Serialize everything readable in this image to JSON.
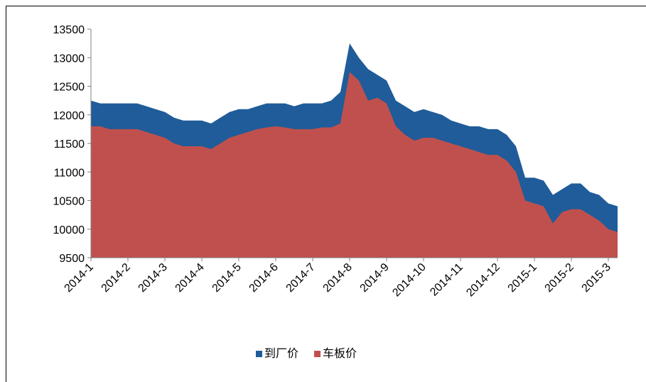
{
  "chart_data": {
    "type": "area",
    "categories": [
      "2014-1",
      null,
      null,
      null,
      "2014-2",
      null,
      null,
      null,
      "2014-3",
      null,
      null,
      null,
      "2014-4",
      null,
      null,
      null,
      "2014-5",
      null,
      null,
      null,
      "2014-6",
      null,
      null,
      null,
      "2014-7",
      null,
      null,
      null,
      "2014-8",
      null,
      null,
      null,
      "2014-9",
      null,
      null,
      null,
      "2014-10",
      null,
      null,
      null,
      "2014-11",
      null,
      null,
      null,
      "2014-12",
      null,
      null,
      null,
      "2015-1",
      null,
      null,
      null,
      "2015-2",
      null,
      null,
      null,
      "2015-3",
      null
    ],
    "series": [
      {
        "name": "到厂价",
        "color": "#1f5c99",
        "values": [
          12250,
          12200,
          12200,
          12200,
          12200,
          12200,
          12150,
          12100,
          12050,
          11950,
          11900,
          11900,
          11900,
          11850,
          11950,
          12050,
          12100,
          12100,
          12150,
          12200,
          12200,
          12200,
          12150,
          12200,
          12200,
          12200,
          12250,
          12400,
          13250,
          13000,
          12800,
          12700,
          12600,
          12250,
          12150,
          12050,
          12100,
          12050,
          12000,
          11900,
          11850,
          11800,
          11800,
          11750,
          11750,
          11650,
          11450,
          10900,
          10900,
          10850,
          10600,
          10700,
          10800,
          10800,
          10650,
          10600,
          10450,
          10400
        ]
      },
      {
        "name": "车板价",
        "color": "#c0504d",
        "values": [
          11800,
          11800,
          11750,
          11750,
          11750,
          11750,
          11700,
          11650,
          11600,
          11500,
          11450,
          11450,
          11450,
          11400,
          11500,
          11600,
          11650,
          11700,
          11750,
          11780,
          11800,
          11780,
          11750,
          11750,
          11750,
          11780,
          11780,
          11850,
          12750,
          12600,
          12250,
          12300,
          12200,
          11800,
          11650,
          11550,
          11600,
          11600,
          11550,
          11500,
          11450,
          11400,
          11350,
          11300,
          11300,
          11200,
          11000,
          10500,
          10450,
          10400,
          10100,
          10300,
          10350,
          10350,
          10250,
          10150,
          10000,
          9950
        ]
      }
    ],
    "ylim": [
      9500,
      13500
    ],
    "yticks": [
      9500,
      10000,
      10500,
      11000,
      11500,
      12000,
      12500,
      13000,
      13500
    ],
    "legend": "bottom"
  }
}
